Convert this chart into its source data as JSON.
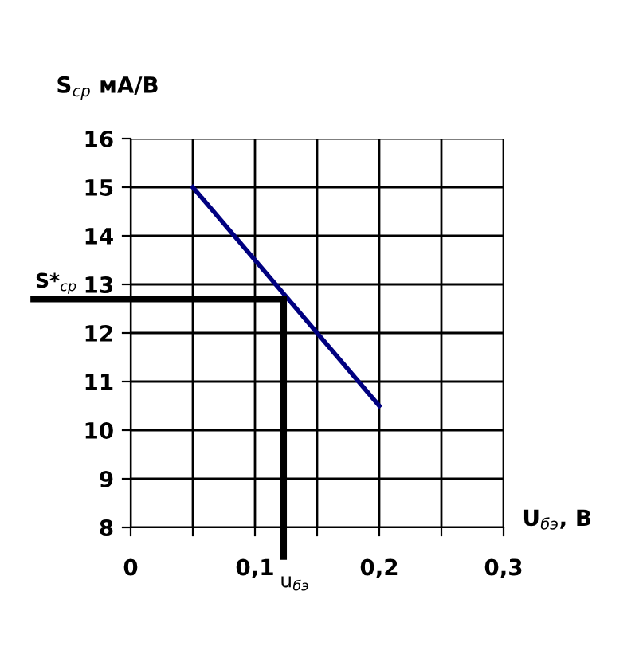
{
  "chart_data": {
    "type": "line",
    "xlabel": "U$_{бэ}$, В",
    "ylabel": "S$_{ср}$ мА/В",
    "x": [
      0.05,
      0.2
    ],
    "series": [
      {
        "color": "#000080",
        "values": [
          15,
          10.5
        ]
      }
    ],
    "xlim": [
      0,
      0.3
    ],
    "ylim": [
      8,
      16
    ],
    "xticks": [
      {
        "value": 0,
        "label": "0"
      },
      {
        "value": 0.05,
        "label": null
      },
      {
        "value": 0.1,
        "label": "0,1"
      },
      {
        "value": 0.15,
        "label": null
      },
      {
        "value": 0.2,
        "label": "0,2"
      },
      {
        "value": 0.25,
        "label": null
      },
      {
        "value": 0.3,
        "label": "0,3"
      }
    ],
    "yticks": [
      8,
      9,
      10,
      11,
      12,
      13,
      14,
      15,
      16
    ],
    "grid": true,
    "marker": "none",
    "line_style": "solid",
    "ref_lines": [
      {
        "axis": "x",
        "value": 0.123,
        "label": "u$_{бэ}$",
        "color": "#000000"
      },
      {
        "axis": "y",
        "value": 12.7,
        "label": "S*$_{ср}$",
        "color": "#000000"
      }
    ]
  }
}
